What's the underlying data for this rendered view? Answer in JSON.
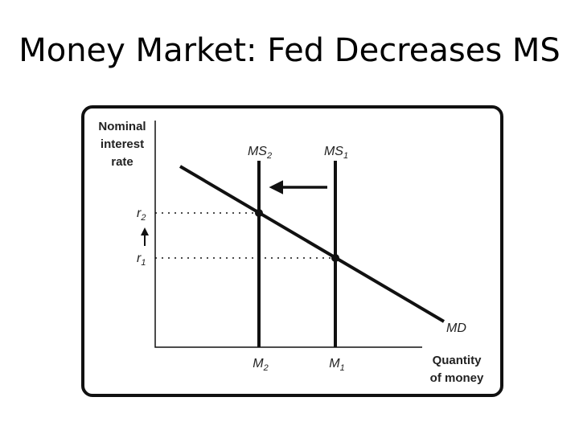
{
  "title": "Money Market: Fed Decreases MS",
  "y_axis_label": [
    "Nominal",
    "interest",
    "rate"
  ],
  "x_axis_label": [
    "Quantity",
    "of money"
  ],
  "curves": {
    "ms2": {
      "main": "MS",
      "sub": "2"
    },
    "ms1": {
      "main": "MS",
      "sub": "1"
    },
    "md": "MD"
  },
  "rates": {
    "r2": {
      "main": "r",
      "sub": "2"
    },
    "r1": {
      "main": "r",
      "sub": "1"
    }
  },
  "quantities": {
    "m2": {
      "main": "M",
      "sub": "2"
    },
    "m1": {
      "main": "M",
      "sub": "1"
    }
  }
}
